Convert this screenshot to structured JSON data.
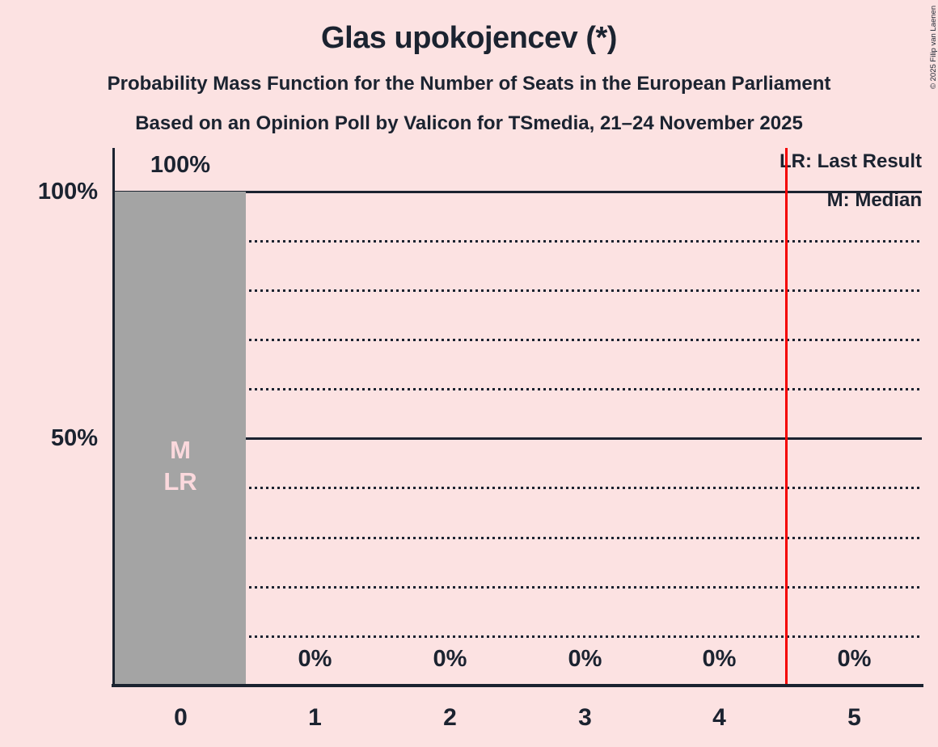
{
  "header": {
    "title": "Glas upokojencev (*)",
    "subtitle": "Probability Mass Function for the Number of Seats in the European Parliament",
    "poll_line": "Based on an Opinion Poll by Valicon for TSmedia, 21–24 November 2025"
  },
  "copyright": "© 2025 Filip van Laenen",
  "legend": {
    "last_result": "LR: Last Result",
    "median": "M: Median"
  },
  "y_axis": {
    "labels": [
      "100%",
      "50%"
    ]
  },
  "annotations": {
    "median": "M",
    "last_result": "LR"
  },
  "colors": {
    "background": "#fce2e2",
    "ink": "#1b2330",
    "bar": "#a4a4a4",
    "bar_inner_label": "#fbd9dd",
    "last_result_line": "#f40000"
  },
  "chart_data": {
    "type": "bar",
    "title": "Glas upokojencev (*)",
    "subtitle": "Probability Mass Function for the Number of Seats in the European Parliament",
    "source_line": "Based on an Opinion Poll by Valicon for TSmedia, 21–24 November 2025",
    "categories": [
      "0",
      "1",
      "2",
      "3",
      "4",
      "5"
    ],
    "values": [
      100,
      0,
      0,
      0,
      0,
      0
    ],
    "bar_value_labels": [
      "100%",
      "0%",
      "0%",
      "0%",
      "0%",
      "0%"
    ],
    "ylim": [
      0,
      100
    ],
    "y_tick_labels": [
      "100%",
      "50%"
    ],
    "y_gridlines_percent": [
      100,
      90,
      80,
      70,
      60,
      50,
      40,
      30,
      20,
      10
    ],
    "solid_gridlines_percent": [
      100,
      50
    ],
    "median_seats": 0,
    "last_result_seats": 0,
    "last_result_line_x": 4.5,
    "legend_position": "top-right",
    "legend_entries": [
      "LR: Last Result",
      "M: Median"
    ],
    "grid": "horizontal dotted"
  }
}
